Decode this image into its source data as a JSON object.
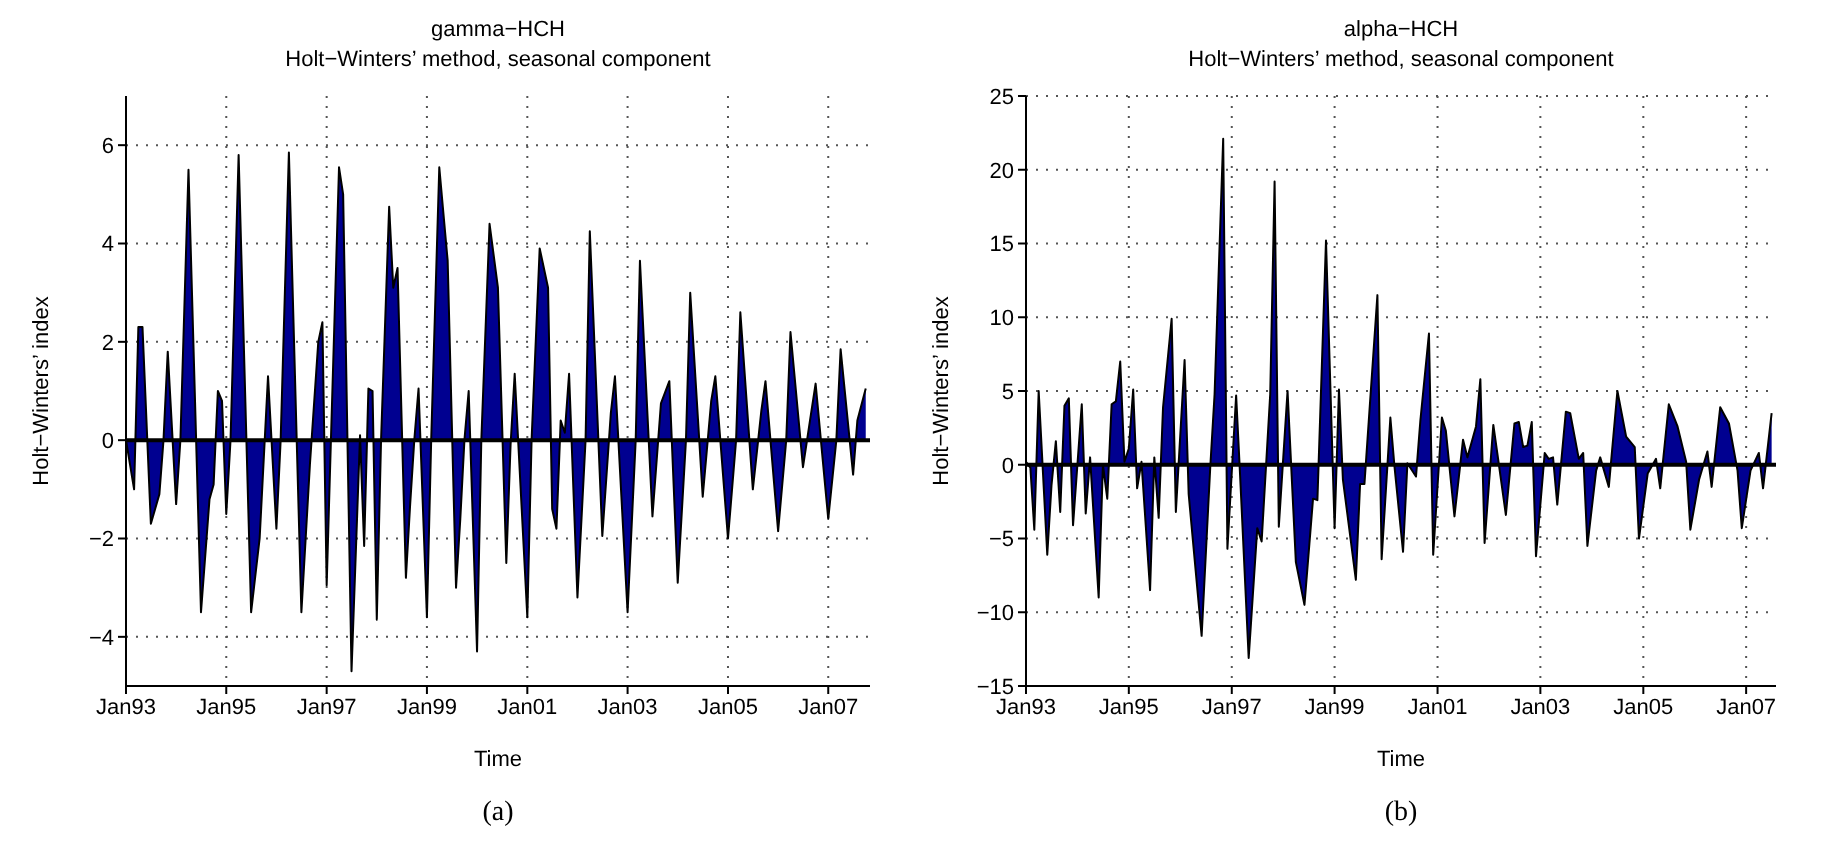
{
  "chart_data": [
    {
      "type": "area",
      "title": "gamma−HCH",
      "subtitle": "Holt−Winters’ method, seasonal component",
      "xlabel": "Time",
      "ylabel": "Holt−Winters’ index",
      "annotations": [
        "(a)"
      ],
      "grid": true,
      "xlim": [
        "1993-01",
        "2007-11"
      ],
      "xticks": [
        {
          "value": "1993-01",
          "label": "Jan93"
        },
        {
          "value": "1995-01",
          "label": "Jan95"
        },
        {
          "value": "1997-01",
          "label": "Jan97"
        },
        {
          "value": "1999-01",
          "label": "Jan99"
        },
        {
          "value": "2001-01",
          "label": "Jan01"
        },
        {
          "value": "2003-01",
          "label": "Jan03"
        },
        {
          "value": "2005-01",
          "label": "Jan05"
        },
        {
          "value": "2007-01",
          "label": "Jan07"
        }
      ],
      "ylim": [
        -5,
        7
      ],
      "yticks": [
        {
          "value": -4,
          "label": "−4"
        },
        {
          "value": -2,
          "label": "−2"
        },
        0,
        2,
        4,
        6
      ],
      "ref_lines": [
        {
          "axis": "y",
          "value": 0,
          "color": "#000000"
        }
      ],
      "x": [
        "1993-01",
        "1993-03",
        "1993-04",
        "1993-05",
        "1993-07",
        "1993-09",
        "1993-10",
        "1993-11",
        "1994-01",
        "1994-02",
        "1994-04",
        "1994-07",
        "1994-09",
        "1994-10",
        "1994-11",
        "1994-12",
        "1995-01",
        "1995-02",
        "1995-04",
        "1995-07",
        "1995-09",
        "1995-11",
        "1996-01",
        "1996-02",
        "1996-04",
        "1996-07",
        "1996-09",
        "1996-11",
        "1996-12",
        "1997-01",
        "1997-02",
        "1997-04",
        "1997-05",
        "1997-07",
        "1997-09",
        "1997-10",
        "1997-11",
        "1997-12",
        "1998-01",
        "1998-02",
        "1998-04",
        "1998-05",
        "1998-06",
        "1998-08",
        "1998-09",
        "1998-10",
        "1998-11",
        "1999-01",
        "1999-02",
        "1999-04",
        "1999-06",
        "1999-08",
        "1999-09",
        "1999-10",
        "1999-11",
        "2000-01",
        "2000-02",
        "2000-04",
        "2000-06",
        "2000-08",
        "2000-09",
        "2000-10",
        "2001-01",
        "2001-02",
        "2001-04",
        "2001-06",
        "2001-07",
        "2001-08",
        "2001-09",
        "2001-10",
        "2001-11",
        "2002-01",
        "2002-03",
        "2002-04",
        "2002-07",
        "2002-09",
        "2002-10",
        "2003-01",
        "2003-03",
        "2003-04",
        "2003-07",
        "2003-09",
        "2003-11",
        "2004-01",
        "2004-03",
        "2004-04",
        "2004-07",
        "2004-09",
        "2004-10",
        "2005-01",
        "2005-03",
        "2005-04",
        "2005-07",
        "2005-09",
        "2005-10",
        "2006-01",
        "2006-03",
        "2006-04",
        "2006-07",
        "2006-09",
        "2006-10",
        "2007-01",
        "2007-03",
        "2007-04",
        "2007-07",
        "2007-08",
        "2007-10"
      ],
      "series": [
        {
          "color": "#000090",
          "values": [
            0,
            -1.0,
            2.3,
            2.3,
            -1.7,
            -1.1,
            0,
            1.8,
            -1.3,
            0,
            5.5,
            -3.5,
            -1.2,
            -0.9,
            1.0,
            0.8,
            -1.5,
            0,
            5.8,
            -3.5,
            -2.0,
            1.3,
            -1.8,
            0,
            5.85,
            -3.5,
            -0.5,
            2.0,
            2.4,
            -2.95,
            0,
            5.55,
            5.0,
            -4.7,
            0.1,
            -2.15,
            1.05,
            1.0,
            -3.65,
            0,
            4.75,
            3.1,
            3.5,
            -2.8,
            -1.3,
            0,
            1.05,
            -3.6,
            0,
            5.55,
            3.65,
            -3.0,
            -1.6,
            0,
            1.0,
            -4.3,
            0,
            4.4,
            3.1,
            -2.5,
            -0.1,
            1.35,
            -3.6,
            0,
            3.9,
            3.1,
            -1.4,
            -1.8,
            0.4,
            0.15,
            1.35,
            -3.2,
            0,
            4.25,
            -1.95,
            0.55,
            1.3,
            -3.5,
            0,
            3.65,
            -1.55,
            0.75,
            1.2,
            -2.9,
            0,
            3.0,
            -1.15,
            0.8,
            1.3,
            -2.0,
            0,
            2.6,
            -1.0,
            0.6,
            1.2,
            -1.85,
            0,
            2.2,
            -0.55,
            0.6,
            1.15,
            -1.6,
            0,
            1.85,
            -0.7,
            0.4,
            1.05
          ]
        }
      ]
    },
    {
      "type": "area",
      "title": "alpha−HCH",
      "subtitle": "Holt−Winters’ method, seasonal component",
      "xlabel": "Time",
      "ylabel": "Holt−Winters’ index",
      "annotations": [
        "(b)"
      ],
      "grid": true,
      "xlim": [
        "1993-01",
        "2007-08"
      ],
      "xticks": [
        {
          "value": "1993-01",
          "label": "Jan93"
        },
        {
          "value": "1995-01",
          "label": "Jan95"
        },
        {
          "value": "1997-01",
          "label": "Jan97"
        },
        {
          "value": "1999-01",
          "label": "Jan99"
        },
        {
          "value": "2001-01",
          "label": "Jan01"
        },
        {
          "value": "2003-01",
          "label": "Jan03"
        },
        {
          "value": "2005-01",
          "label": "Jan05"
        },
        {
          "value": "2007-01",
          "label": "Jan07"
        }
      ],
      "ylim": [
        -15,
        25
      ],
      "yticks": [
        {
          "value": -15,
          "label": "−15"
        },
        {
          "value": -10,
          "label": "−10"
        },
        {
          "value": -5,
          "label": "−5"
        },
        0,
        5,
        10,
        15,
        20,
        25
      ],
      "ref_lines": [
        {
          "axis": "y",
          "value": 0,
          "color": "#000000"
        }
      ],
      "x": [
        "1993-01",
        "1993-02",
        "1993-03",
        "1993-04",
        "1993-06",
        "1993-07",
        "1993-08",
        "1993-09",
        "1993-10",
        "1993-11",
        "1993-12",
        "1994-02",
        "1994-03",
        "1994-04",
        "1994-06",
        "1994-07",
        "1994-08",
        "1994-09",
        "1994-10",
        "1994-11",
        "1994-12",
        "1995-01",
        "1995-02",
        "1995-03",
        "1995-04",
        "1995-06",
        "1995-07",
        "1995-08",
        "1995-09",
        "1995-11",
        "1995-12",
        "1996-02",
        "1996-03",
        "1996-06",
        "1996-08",
        "1996-09",
        "1996-11",
        "1996-12",
        "1997-02",
        "1997-03",
        "1997-05",
        "1997-07",
        "1997-08",
        "1997-10",
        "1997-11",
        "1997-12",
        "1998-02",
        "1998-04",
        "1998-06",
        "1998-08",
        "1998-09",
        "1998-11",
        "1999-01",
        "1999-02",
        "1999-03",
        "1999-06",
        "1999-07",
        "1999-08",
        "1999-11",
        "1999-12",
        "2000-02",
        "2000-03",
        "2000-05",
        "2000-06",
        "2000-08",
        "2000-09",
        "2000-11",
        "2000-12",
        "2001-02",
        "2001-03",
        "2001-05",
        "2001-07",
        "2001-08",
        "2001-10",
        "2001-11",
        "2001-12",
        "2002-02",
        "2002-03",
        "2002-05",
        "2002-07",
        "2002-08",
        "2002-09",
        "2002-10",
        "2002-11",
        "2002-12",
        "2003-02",
        "2003-03",
        "2003-04",
        "2003-05",
        "2003-07",
        "2003-08",
        "2003-10",
        "2003-11",
        "2003-12",
        "2004-02",
        "2004-03",
        "2004-05",
        "2004-07",
        "2004-09",
        "2004-11",
        "2004-12",
        "2005-02",
        "2005-04",
        "2005-05",
        "2005-07",
        "2005-09",
        "2005-11",
        "2005-12",
        "2006-02",
        "2006-04",
        "2006-05",
        "2006-07",
        "2006-09",
        "2006-11",
        "2006-12",
        "2007-02",
        "2007-04",
        "2007-05",
        "2007-07"
      ],
      "series": [
        {
          "color": "#000090",
          "values": [
            0.2,
            -0.2,
            -4.4,
            5.0,
            -6.1,
            -1.4,
            1.6,
            -3.2,
            4.0,
            4.5,
            -4.1,
            4.1,
            -3.3,
            0.5,
            -9.0,
            0,
            -2.3,
            4.1,
            4.3,
            7.0,
            0.2,
            1.1,
            5.1,
            -1.6,
            0.2,
            -8.5,
            0.5,
            -3.6,
            3.9,
            9.9,
            -3.2,
            7.1,
            -2.0,
            -11.6,
            -0.2,
            4.8,
            22.1,
            -5.7,
            4.7,
            -0.7,
            -13.1,
            -4.3,
            -5.2,
            4.8,
            19.2,
            -4.2,
            5.0,
            -6.6,
            -9.5,
            -2.3,
            -2.4,
            15.2,
            -4.3,
            5.1,
            -1.0,
            -7.8,
            -1.3,
            -1.3,
            11.5,
            -6.4,
            3.2,
            -0.1,
            -5.9,
            0.1,
            -0.8,
            3.0,
            8.9,
            -6.1,
            3.2,
            2.3,
            -3.5,
            1.7,
            0.5,
            2.6,
            5.8,
            -5.3,
            2.7,
            0.8,
            -3.4,
            2.8,
            2.9,
            1.2,
            1.3,
            2.9,
            -6.2,
            0.8,
            0.4,
            0.5,
            -2.7,
            3.6,
            3.5,
            0.4,
            0.8,
            -5.5,
            -0.4,
            0.5,
            -1.5,
            5.0,
            1.9,
            1.2,
            -5.0,
            -0.6,
            0.4,
            -1.6,
            4.1,
            2.6,
            0.2,
            -4.4,
            -1.0,
            0.9,
            -1.5,
            3.9,
            2.8,
            -0.4,
            -4.3,
            -0.4,
            0.8,
            -1.6,
            3.5
          ]
        }
      ]
    }
  ]
}
